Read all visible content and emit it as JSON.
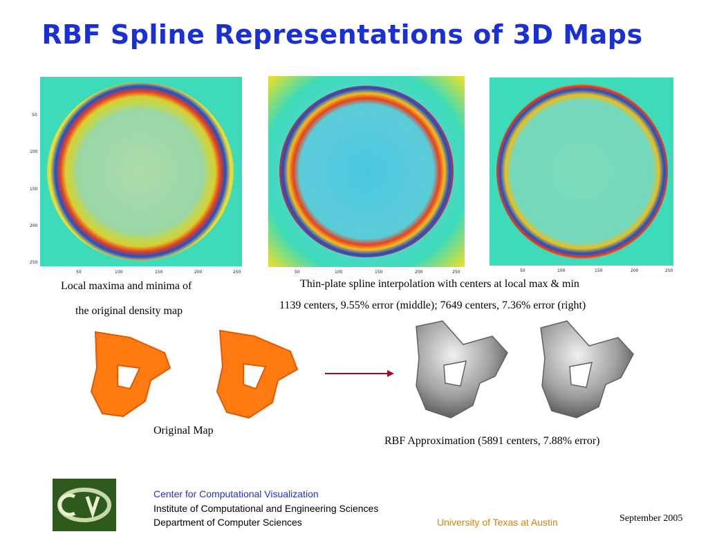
{
  "slide": {
    "title": "RBF Spline Representations of 3D Maps",
    "captions": {
      "left_line1": "Local maxima and minima of",
      "left_line2": "the original density map",
      "right_line1": "Thin-plate spline interpolation with centers at local max & min",
      "right_line2": "1139 centers, 9.55% error (middle); 7649 centers, 7.36% error (right)",
      "original_map": "Original Map",
      "rbf_approx": "RBF Approximation (5891 centers, 7.88% error)"
    },
    "axes": {
      "y_ticks": [
        "50",
        "100",
        "150",
        "200",
        "250"
      ],
      "x_ticks": [
        "50",
        "100",
        "150",
        "200",
        "250"
      ]
    },
    "colors": {
      "title": "#1a2fd4",
      "map_background": "#3ddbb9",
      "original_map": "#ff7a10",
      "rbf_surface": "#9a9a9a",
      "arrow": "#a01020",
      "footer_blue": "#2233cc",
      "footer_orange": "#e08000"
    }
  },
  "footer": {
    "logo_icon": "ccv-logo-icon",
    "line1": "Center for Computational Visualization",
    "line2": "Institute of Computational and Engineering Sciences",
    "line3": "Department of Computer Sciences",
    "university": "University of Texas at Austin",
    "date": "September  2005"
  }
}
